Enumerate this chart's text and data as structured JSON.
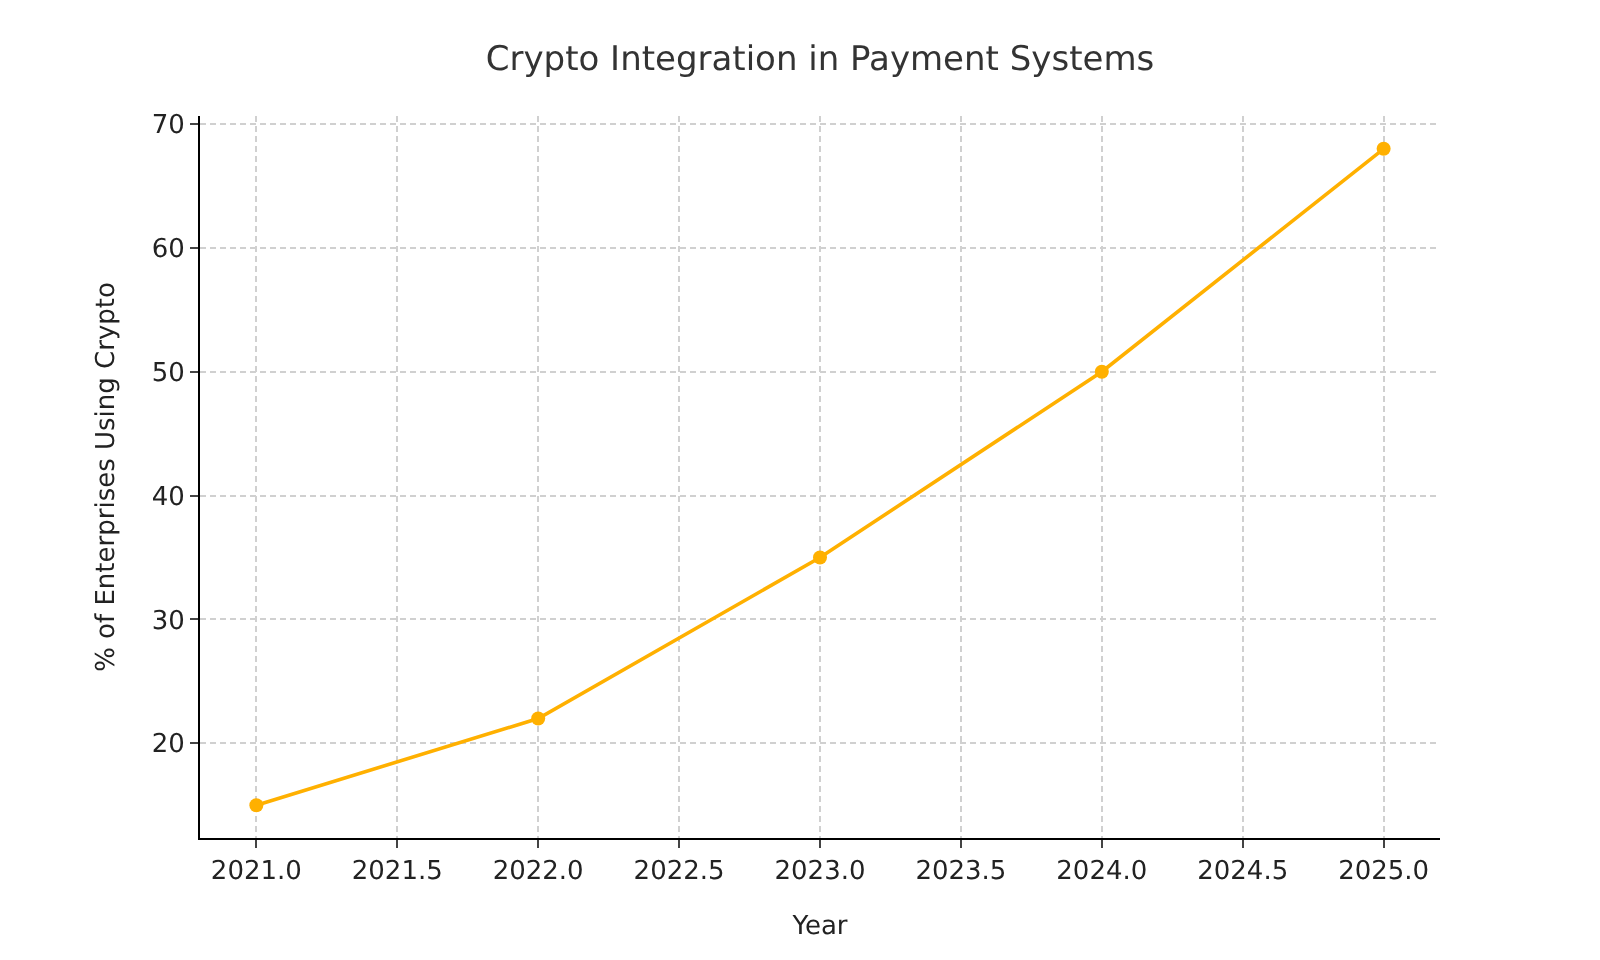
{
  "chart_data": {
    "type": "line",
    "title": "Crypto Integration in Payment Systems",
    "xlabel": "Year",
    "ylabel": "% of Enterprises Using Crypto",
    "x": [
      2021,
      2022,
      2023,
      2024,
      2025
    ],
    "series": [
      {
        "color": "#ffb000",
        "values": [
          15,
          22,
          35,
          50,
          68
        ]
      }
    ],
    "xlim": [
      2020.8,
      2025.2
    ],
    "ylim": [
      12.35,
      70.65
    ],
    "xticks": [
      {
        "value": 2021,
        "label": "2021.0"
      },
      {
        "value": 2021.5,
        "label": "2021.5"
      },
      {
        "value": 2022,
        "label": "2022.0"
      },
      {
        "value": 2022.5,
        "label": "2022.5"
      },
      {
        "value": 2023,
        "label": "2023.0"
      },
      {
        "value": 2023.5,
        "label": "2023.5"
      },
      {
        "value": 2024,
        "label": "2024.0"
      },
      {
        "value": 2024.5,
        "label": "2024.5"
      },
      {
        "value": 2025,
        "label": "2025.0"
      }
    ],
    "yticks": [
      20,
      30,
      40,
      50,
      60,
      70
    ],
    "grid": true,
    "marker": "circle",
    "line_style": "solid"
  }
}
